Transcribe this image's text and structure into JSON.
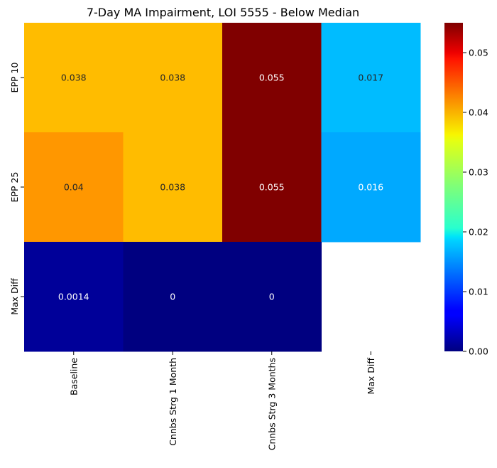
{
  "chart_data": {
    "type": "heatmap",
    "title": "7-Day MA Impairment, LOI 5555 - Below Median",
    "x_categories": [
      "Baseline",
      "Cnnbs Strg 1 Month",
      "Cnnbs Strg 3 Months",
      "Max Diff"
    ],
    "y_categories": [
      "EPP 10",
      "EPP 25",
      "Max Diff"
    ],
    "values": [
      [
        0.038,
        0.038,
        0.055,
        0.017
      ],
      [
        0.04,
        0.038,
        0.055,
        0.016
      ],
      [
        0.0014,
        0,
        0,
        null
      ]
    ],
    "cell_labels": [
      [
        "0.038",
        "0.038",
        "0.055",
        "0.017"
      ],
      [
        "0.04",
        "0.038",
        "0.055",
        "0.016"
      ],
      [
        "0.0014",
        "0",
        "0",
        ""
      ]
    ],
    "colormap": "jet",
    "color_range": [
      0,
      0.055
    ],
    "colorbar_ticks": [
      0.0,
      0.01,
      0.02,
      0.03,
      0.04,
      0.05
    ],
    "colorbar_tick_labels": [
      "0.00",
      "0.01",
      "0.02",
      "0.03",
      "0.04",
      "0.05"
    ],
    "xlabel": "",
    "ylabel": ""
  }
}
